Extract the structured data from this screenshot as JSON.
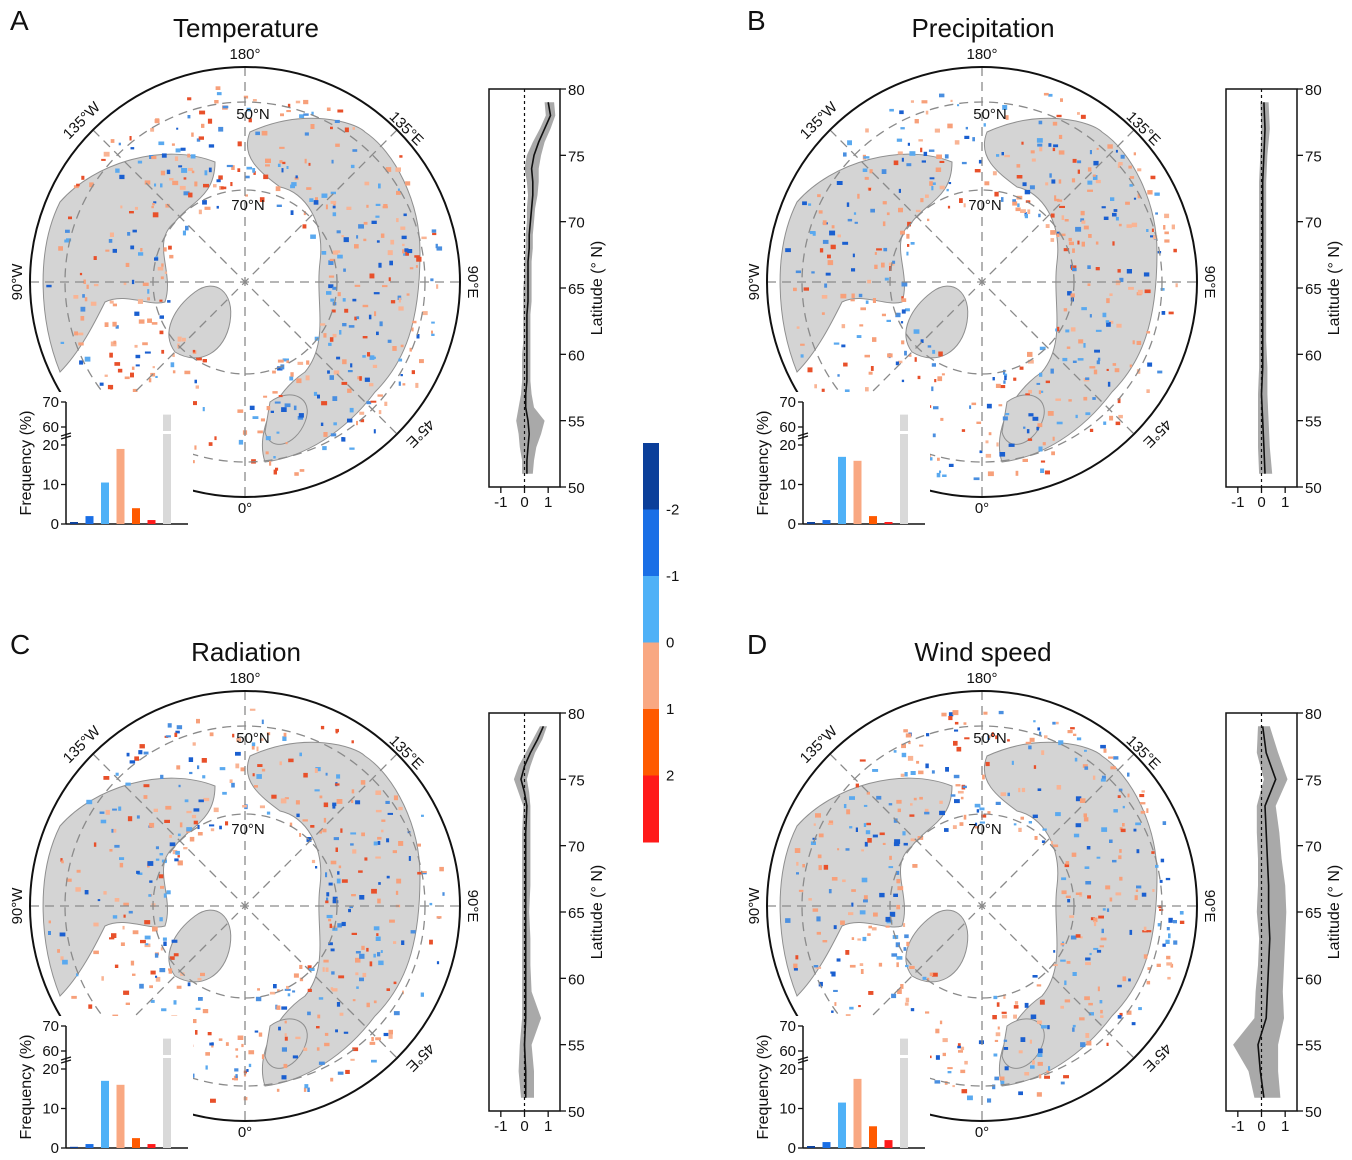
{
  "figure": {
    "colorbar": {
      "tick_labels": [
        "-2",
        "-1",
        "0",
        "1",
        "2"
      ],
      "colors": [
        "#0b3f9a",
        "#1a6fe6",
        "#4fb1f7",
        "#f9a882",
        "#ff5a00",
        "#ff1a1a"
      ]
    },
    "map_labels": {
      "lon_180": "180°",
      "lon_135w": "135°W",
      "lon_135e": "135°E",
      "lon_90w": "90°W",
      "lon_90e": "90°E",
      "lon_45e": "45°E",
      "lon_0": "0°",
      "lat_50": "50°N",
      "lat_70": "70°N"
    },
    "colors": {
      "land": "#d4d4d4",
      "coast": "#8f8f8f",
      "band": "#a9a9a9",
      "line": "#111111",
      "grey_bar": "#d9d9d9"
    }
  },
  "chart_data": [
    {
      "panel": "A",
      "title": "Temperature",
      "type": "bar",
      "histogram": {
        "ylabel": "Frequency (%)",
        "yticks": [
          "0",
          "10",
          "20",
          "60",
          "70"
        ],
        "values": [
          0.5,
          2,
          10.5,
          19,
          4,
          1,
          64
        ]
      },
      "profile": {
        "type": "line",
        "xticks": [
          "-1",
          "0",
          "1"
        ],
        "yticks": [
          "50",
          "55",
          "60",
          "65",
          "70",
          "75",
          "80"
        ],
        "ylabel": "Latitude (° N)",
        "xlim": [
          -1.5,
          1.5
        ],
        "ylim": [
          50,
          80
        ],
        "lat": [
          51,
          52,
          53,
          54,
          55,
          56,
          57,
          58,
          59,
          60,
          61,
          62,
          63,
          64,
          65,
          66,
          67,
          68,
          69,
          70,
          71,
          72,
          73,
          74,
          75,
          76,
          77,
          78,
          79
        ],
        "mean": [
          0.1,
          0.1,
          0.15,
          0.2,
          0.15,
          0.05,
          0.05,
          0.1,
          0.1,
          0.1,
          0.1,
          0.1,
          0.1,
          0.15,
          0.15,
          0.15,
          0.15,
          0.2,
          0.2,
          0.25,
          0.3,
          0.35,
          0.35,
          0.3,
          0.4,
          0.6,
          0.85,
          1.1,
          1.0
        ],
        "lower": [
          -0.1,
          -0.1,
          -0.2,
          -0.25,
          -0.35,
          -0.25,
          -0.15,
          -0.1,
          -0.1,
          -0.1,
          -0.05,
          -0.05,
          -0.05,
          -0.05,
          -0.05,
          0.0,
          0.0,
          0.05,
          0.05,
          0.1,
          0.1,
          0.15,
          0.1,
          0.0,
          0.1,
          0.35,
          0.65,
          0.9,
          0.85
        ],
        "upper": [
          0.35,
          0.4,
          0.5,
          0.7,
          0.85,
          0.4,
          0.3,
          0.25,
          0.25,
          0.25,
          0.25,
          0.25,
          0.25,
          0.3,
          0.3,
          0.3,
          0.3,
          0.35,
          0.35,
          0.4,
          0.45,
          0.55,
          0.6,
          0.6,
          0.7,
          0.85,
          1.1,
          1.3,
          1.25
        ]
      }
    },
    {
      "panel": "B",
      "title": "Precipitation",
      "type": "bar",
      "histogram": {
        "ylabel": "Frequency (%)",
        "yticks": [
          "0",
          "10",
          "20",
          "60",
          "70"
        ],
        "values": [
          0.5,
          1,
          17,
          16,
          2,
          0.5,
          64
        ]
      },
      "profile": {
        "type": "line",
        "xticks": [
          "-1",
          "0",
          "1"
        ],
        "yticks": [
          "50",
          "55",
          "60",
          "65",
          "70",
          "75",
          "80"
        ],
        "ylabel": "Latitude (° N)",
        "xlim": [
          -1.5,
          1.5
        ],
        "ylim": [
          50,
          80
        ],
        "lat": [
          51,
          53,
          55,
          57,
          59,
          61,
          63,
          65,
          67,
          69,
          71,
          73,
          75,
          77,
          79
        ],
        "mean": [
          0.15,
          0.1,
          0.05,
          0.0,
          0.05,
          0.05,
          0.05,
          0.05,
          0.05,
          0.05,
          0.05,
          0.05,
          0.1,
          0.15,
          0.1
        ],
        "lower": [
          -0.1,
          -0.15,
          -0.15,
          -0.15,
          -0.1,
          -0.1,
          -0.1,
          -0.1,
          -0.1,
          -0.1,
          -0.1,
          -0.1,
          -0.05,
          0.0,
          -0.05
        ],
        "upper": [
          0.45,
          0.35,
          0.3,
          0.25,
          0.25,
          0.2,
          0.2,
          0.2,
          0.2,
          0.2,
          0.2,
          0.2,
          0.25,
          0.35,
          0.3
        ]
      }
    },
    {
      "panel": "C",
      "title": "Radiation",
      "type": "bar",
      "histogram": {
        "ylabel": "Frequency (%)",
        "yticks": [
          "0",
          "10",
          "20",
          "60",
          "70"
        ],
        "values": [
          0.3,
          1,
          17,
          16,
          2.5,
          1,
          64
        ]
      },
      "profile": {
        "type": "line",
        "xticks": [
          "-1",
          "0",
          "1"
        ],
        "yticks": [
          "50",
          "55",
          "60",
          "65",
          "70",
          "75",
          "80"
        ],
        "ylabel": "Latitude (° N)",
        "xlim": [
          -1.5,
          1.5
        ],
        "ylim": [
          50,
          80
        ],
        "lat": [
          51,
          53,
          55,
          57,
          59,
          61,
          63,
          65,
          67,
          69,
          71,
          73,
          74,
          75,
          76,
          77,
          78,
          79
        ],
        "mean": [
          0.05,
          0.05,
          0.0,
          0.05,
          0.05,
          0.05,
          0.05,
          0.05,
          0.05,
          0.05,
          0.05,
          0.1,
          0.0,
          -0.15,
          0.0,
          0.25,
          0.55,
          0.8
        ],
        "lower": [
          -0.15,
          -0.25,
          -0.2,
          -0.1,
          -0.1,
          -0.1,
          -0.1,
          -0.1,
          -0.1,
          -0.1,
          -0.1,
          -0.05,
          -0.25,
          -0.45,
          -0.25,
          0.05,
          0.35,
          0.65
        ],
        "upper": [
          0.4,
          0.4,
          0.3,
          0.7,
          0.3,
          0.25,
          0.25,
          0.2,
          0.25,
          0.25,
          0.25,
          0.25,
          0.2,
          0.1,
          0.25,
          0.45,
          0.75,
          0.95
        ]
      }
    },
    {
      "panel": "D",
      "title": "Wind speed",
      "type": "bar",
      "histogram": {
        "ylabel": "Frequency (%)",
        "yticks": [
          "0",
          "10",
          "20",
          "60",
          "70"
        ],
        "values": [
          0.5,
          1.5,
          11.5,
          17.5,
          5.5,
          2,
          64
        ]
      },
      "profile": {
        "type": "line",
        "xticks": [
          "-1",
          "0",
          "1"
        ],
        "yticks": [
          "50",
          "55",
          "60",
          "65",
          "70",
          "75",
          "80"
        ],
        "ylabel": "Latitude (° N)",
        "xlim": [
          -1.5,
          1.5
        ],
        "ylim": [
          50,
          80
        ],
        "lat": [
          51,
          53,
          55,
          57,
          59,
          61,
          63,
          65,
          67,
          69,
          71,
          73,
          75,
          77,
          79
        ],
        "mean": [
          0.1,
          -0.05,
          -0.15,
          0.2,
          0.25,
          0.3,
          0.35,
          0.3,
          0.3,
          0.25,
          0.2,
          0.15,
          0.6,
          0.2,
          0.05
        ],
        "lower": [
          -0.3,
          -0.55,
          -1.2,
          -0.3,
          -0.25,
          -0.15,
          -0.1,
          -0.2,
          -0.15,
          -0.15,
          -0.2,
          -0.2,
          0.1,
          -0.2,
          -0.15
        ],
        "upper": [
          0.8,
          0.7,
          0.7,
          0.95,
          0.9,
          0.95,
          1.0,
          1.05,
          1.0,
          0.85,
          0.75,
          0.6,
          1.1,
          0.7,
          0.35
        ]
      }
    }
  ]
}
